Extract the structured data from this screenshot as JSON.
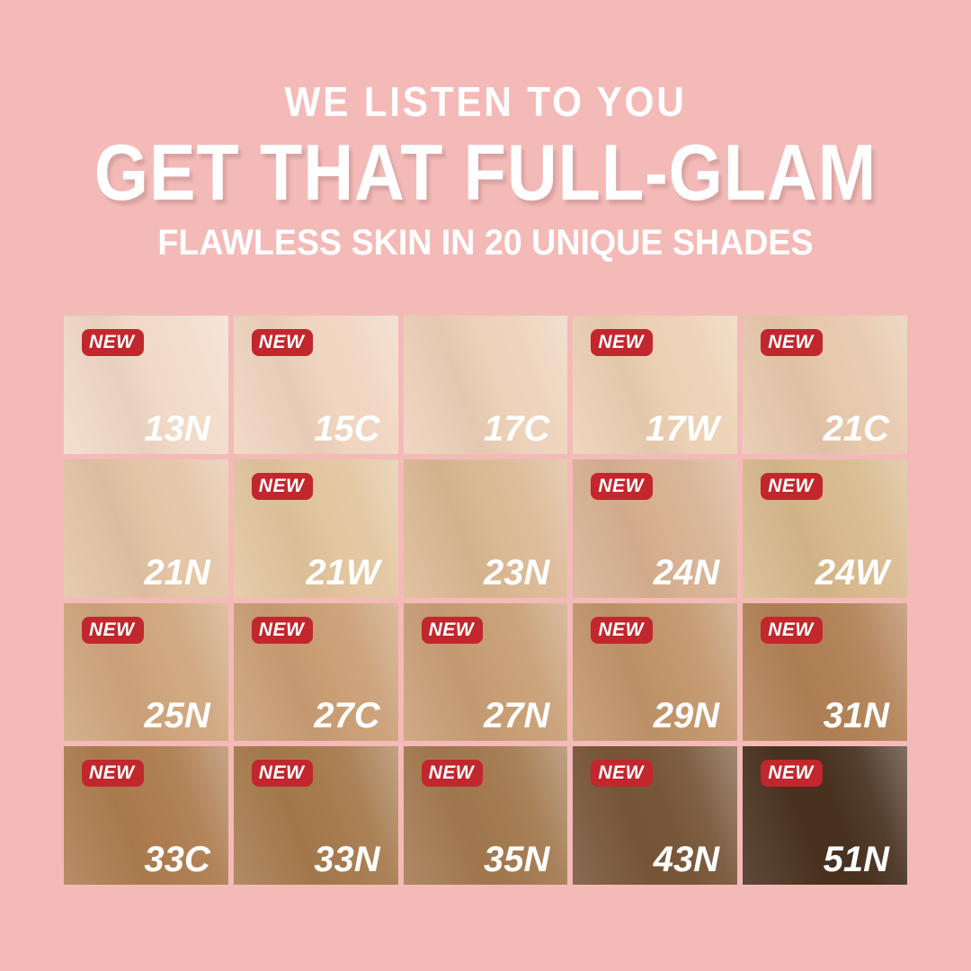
{
  "page": {
    "background": "#f4bab8"
  },
  "header": {
    "line1": "WE LISTEN TO YOU",
    "line2": "GET THAT FULL-GLAM",
    "line3": "FLAWLESS SKIN IN 20 UNIQUE SHADES",
    "text_color": "#ffffff"
  },
  "badge": {
    "label": "NEW",
    "bg": "#c1272d",
    "text_color": "#ffffff"
  },
  "grid": {
    "rows": 4,
    "cols": 5,
    "cells": [
      {
        "shade": "13N",
        "new": true,
        "color": "#f2dac8"
      },
      {
        "shade": "15C",
        "new": true,
        "color": "#f0d5c0"
      },
      {
        "shade": "17C",
        "new": false,
        "color": "#edd2ba"
      },
      {
        "shade": "17W",
        "new": true,
        "color": "#ecd1b4"
      },
      {
        "shade": "21C",
        "new": true,
        "color": "#e7c9ad"
      },
      {
        "shade": "21N",
        "new": false,
        "color": "#e4c5a6"
      },
      {
        "shade": "21W",
        "new": true,
        "color": "#e3c6a0"
      },
      {
        "shade": "23N",
        "new": false,
        "color": "#dcb995"
      },
      {
        "shade": "24N",
        "new": true,
        "color": "#d8b292"
      },
      {
        "shade": "24W",
        "new": true,
        "color": "#d8ba8e"
      },
      {
        "shade": "25N",
        "new": true,
        "color": "#cfa67e"
      },
      {
        "shade": "27C",
        "new": true,
        "color": "#ca9f76"
      },
      {
        "shade": "27N",
        "new": true,
        "color": "#c89f76"
      },
      {
        "shade": "29N",
        "new": true,
        "color": "#c2966c"
      },
      {
        "shade": "31N",
        "new": true,
        "color": "#b28257"
      },
      {
        "shade": "33C",
        "new": true,
        "color": "#ae7d51"
      },
      {
        "shade": "33N",
        "new": true,
        "color": "#a67b4e"
      },
      {
        "shade": "35N",
        "new": true,
        "color": "#a37a50"
      },
      {
        "shade": "43N",
        "new": true,
        "color": "#785639"
      },
      {
        "shade": "51N",
        "new": true,
        "color": "#48311f"
      }
    ]
  }
}
